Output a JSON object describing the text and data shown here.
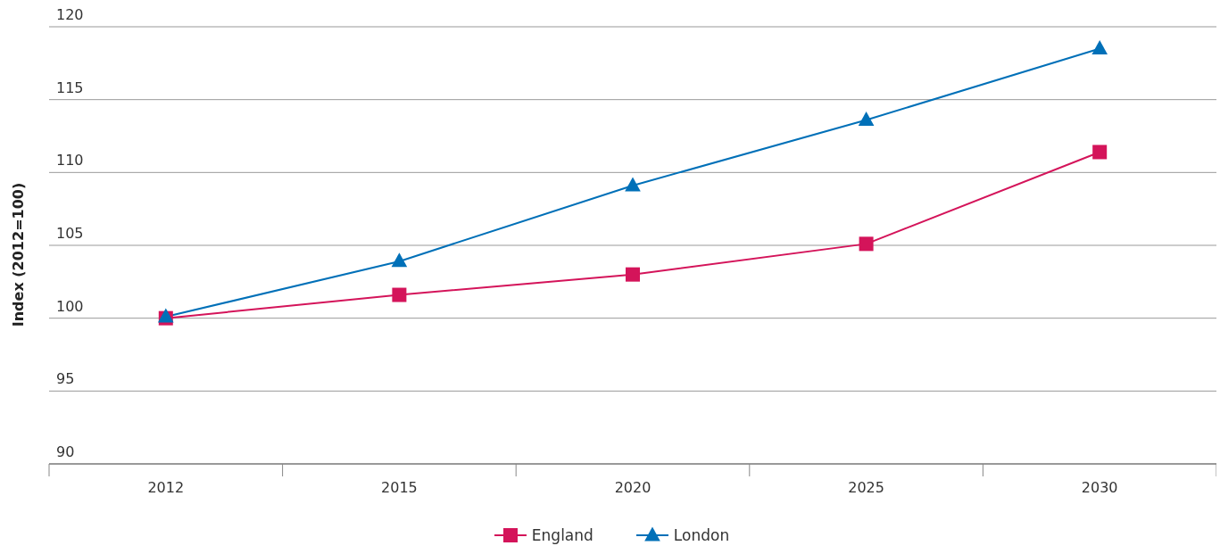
{
  "chart_data": {
    "type": "line",
    "ylabel": "Index (2012=100)",
    "categories": [
      "2012",
      "2015",
      "2020",
      "2025",
      "2030"
    ],
    "series": [
      {
        "name": "England",
        "color": "#d4145a",
        "marker": "square",
        "values": [
          100,
          101.6,
          103.0,
          105.1,
          111.4
        ]
      },
      {
        "name": "London",
        "color": "#0070b8",
        "marker": "triangle",
        "values": [
          100.1,
          103.9,
          109.1,
          113.6,
          118.5
        ]
      }
    ],
    "ylim": [
      90,
      120
    ],
    "yticks": [
      90,
      95,
      100,
      105,
      110,
      115,
      120
    ],
    "grid": "y",
    "legend": "bottom",
    "line_style": "solid"
  }
}
